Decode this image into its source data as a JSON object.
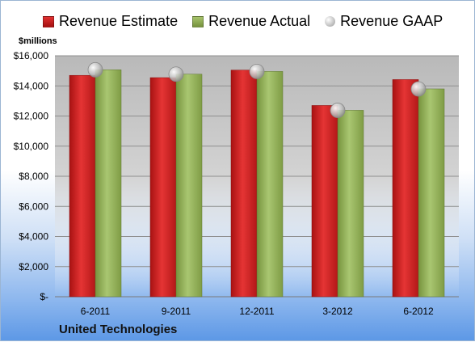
{
  "legend": {
    "estimate": "Revenue Estimate",
    "actual": "Revenue Actual",
    "gaap": "Revenue GAAP"
  },
  "units_label": "$millions",
  "company": "United Technologies",
  "colors": {
    "estimate": "#c81e1e",
    "actual": "#8cac52",
    "gaap": "#c0c0c0",
    "plot_bg": "#bebebe"
  },
  "chart_data": {
    "type": "bar",
    "categories": [
      "6-2011",
      "9-2011",
      "12-2011",
      "3-2012",
      "6-2012"
    ],
    "series": [
      {
        "name": "Revenue Estimate",
        "kind": "bar",
        "values": [
          14700,
          14550,
          15050,
          12700,
          14420
        ]
      },
      {
        "name": "Revenue Actual",
        "kind": "bar",
        "values": [
          15070,
          14780,
          14960,
          12380,
          13800
        ]
      },
      {
        "name": "Revenue GAAP",
        "kind": "marker",
        "values": [
          15070,
          14780,
          14960,
          12380,
          13800
        ]
      }
    ],
    "ylim": [
      0,
      16000
    ],
    "yticks": [
      0,
      2000,
      4000,
      6000,
      8000,
      10000,
      12000,
      14000,
      16000
    ],
    "ytick_labels": [
      "$-",
      "$2,000",
      "$4,000",
      "$6,000",
      "$8,000",
      "$10,000",
      "$12,000",
      "$14,000",
      "$16,000"
    ],
    "grid": true,
    "legend_position": "top"
  }
}
